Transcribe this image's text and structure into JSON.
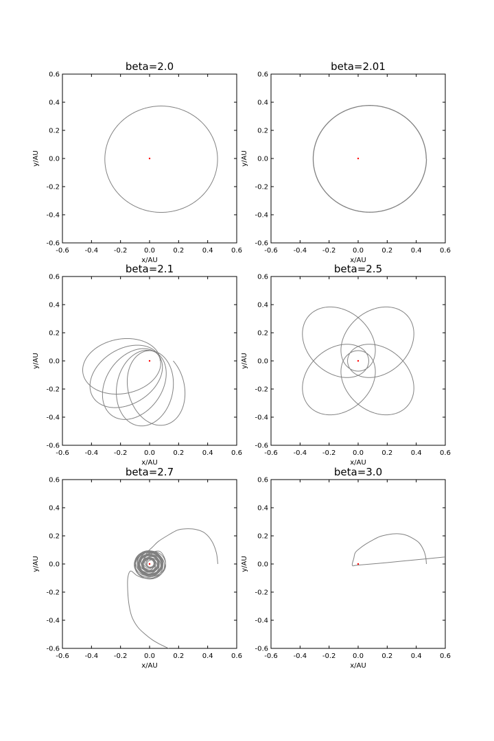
{
  "chart_data": [
    {
      "type": "line",
      "title": "beta=2.0",
      "xlabel": "x/AU",
      "ylabel": "y/AU",
      "xlim": [
        -0.6,
        0.6
      ],
      "ylim": [
        -0.6,
        0.6
      ],
      "xticks": [
        "-0.6",
        "-0.4",
        "-0.2",
        "0.0",
        "0.2",
        "0.4",
        "0.6"
      ],
      "yticks": [
        "-0.6",
        "-0.4",
        "-0.2",
        "0.0",
        "0.2",
        "0.4",
        "0.6"
      ],
      "grid": false,
      "line_color": "#808080",
      "sun_color": "#ff0000",
      "sun": [
        0.0,
        0.0
      ],
      "orbit": {
        "kind": "ellipse",
        "cx": 0.08,
        "cy": -0.005,
        "a": 0.388,
        "b": 0.378,
        "turns": 1
      }
    },
    {
      "type": "line",
      "title": "beta=2.01",
      "xlabel": "x/AU",
      "ylabel": "y/AU",
      "xlim": [
        -0.6,
        0.6
      ],
      "ylim": [
        -0.6,
        0.6
      ],
      "xticks": [
        "-0.6",
        "-0.4",
        "-0.2",
        "0.0",
        "0.2",
        "0.4",
        "0.6"
      ],
      "yticks": [
        "-0.6",
        "-0.4",
        "-0.2",
        "0.0",
        "0.2",
        "0.4",
        "0.6"
      ],
      "grid": false,
      "line_color": "#808080",
      "sun_color": "#ff0000",
      "sun": [
        0.0,
        0.0
      ],
      "orbit": {
        "kind": "ellipse",
        "cx": 0.08,
        "cy": -0.002,
        "a": 0.388,
        "b": 0.378,
        "turns": 2
      }
    },
    {
      "type": "line",
      "title": "beta=2.1",
      "xlabel": "x/AU",
      "ylabel": "y/AU",
      "xlim": [
        -0.6,
        0.6
      ],
      "ylim": [
        -0.6,
        0.6
      ],
      "xticks": [
        "-0.6",
        "-0.4",
        "-0.2",
        "0.0",
        "0.2",
        "0.4",
        "0.6"
      ],
      "yticks": [
        "-0.6",
        "-0.4",
        "-0.2",
        "0.0",
        "0.2",
        "0.4",
        "0.6"
      ],
      "grid": false,
      "line_color": "#808080",
      "sun_color": "#ff0000",
      "sun": [
        0.0,
        0.0
      ],
      "orbit": {
        "kind": "precess",
        "a": 0.27,
        "e": 0.73,
        "k": 0.94,
        "start_angle": 0,
        "turns": 5
      }
    },
    {
      "type": "line",
      "title": "beta=2.5",
      "xlabel": "x/AU",
      "ylabel": "y/AU",
      "xlim": [
        -0.6,
        0.6
      ],
      "ylim": [
        -0.6,
        0.6
      ],
      "xticks": [
        "-0.6",
        "-0.4",
        "-0.2",
        "0.0",
        "0.2",
        "0.4",
        "0.6"
      ],
      "yticks": [
        "-0.6",
        "-0.4",
        "-0.2",
        "0.0",
        "0.2",
        "0.4",
        "0.6"
      ],
      "grid": false,
      "line_color": "#808080",
      "sun_color": "#ff0000",
      "sun": [
        0.0,
        0.0
      ],
      "orbit": {
        "kind": "precess",
        "a": 0.27,
        "e": 0.73,
        "k": 0.8,
        "start_angle": 0,
        "turns": 8
      }
    },
    {
      "type": "line",
      "title": "beta=2.7",
      "xlabel": "x/AU",
      "ylabel": "y/AU",
      "xlim": [
        -0.6,
        0.6
      ],
      "ylim": [
        -0.6,
        0.6
      ],
      "xticks": [
        "-0.6",
        "-0.4",
        "-0.2",
        "0.0",
        "0.2",
        "0.4",
        "0.6"
      ],
      "yticks": [
        "-0.6",
        "-0.4",
        "-0.2",
        "0.0",
        "0.2",
        "0.4",
        "0.6"
      ],
      "grid": false,
      "line_color": "#808080",
      "sun_color": "#ff0000",
      "sun": [
        0.0,
        0.0
      ],
      "orbit": {
        "kind": "points",
        "x": [
          0.47,
          0.46,
          0.43,
          0.38,
          0.32,
          0.25,
          0.19,
          0.12,
          0.06,
          0.02,
          -0.01,
          -0.03,
          -0.02,
          0.02,
          0.07,
          0.1,
          0.11,
          0.09,
          0.05,
          0.0,
          -0.05,
          -0.08,
          -0.08,
          -0.05,
          0.0,
          0.05,
          0.08,
          0.07,
          0.03,
          -0.02,
          -0.06,
          -0.07,
          -0.05,
          0.0,
          0.06,
          0.1,
          0.11,
          0.08,
          0.02,
          -0.04,
          -0.09,
          -0.13,
          -0.15,
          -0.15,
          -0.14,
          -0.12,
          -0.08,
          -0.03,
          0.02,
          0.07,
          0.11,
          0.15
        ],
        "y": [
          0.0,
          0.08,
          0.16,
          0.22,
          0.245,
          0.25,
          0.24,
          0.2,
          0.16,
          0.12,
          0.09,
          0.05,
          0.02,
          0.08,
          0.09,
          0.05,
          0.0,
          -0.05,
          -0.08,
          -0.09,
          -0.07,
          -0.03,
          0.03,
          0.07,
          0.08,
          0.06,
          0.01,
          -0.04,
          -0.08,
          -0.08,
          -0.05,
          0.0,
          0.06,
          0.09,
          0.08,
          0.04,
          -0.02,
          -0.07,
          -0.1,
          -0.1,
          -0.08,
          -0.05,
          -0.1,
          -0.2,
          -0.3,
          -0.38,
          -0.45,
          -0.5,
          -0.54,
          -0.57,
          -0.59,
          -0.61
        ]
      },
      "inner_cluster": {
        "cx": 0.0,
        "cy": 0.0,
        "r_min": 0.03,
        "r_max": 0.1,
        "loops": 26
      }
    },
    {
      "type": "line",
      "title": "beta=3.0",
      "xlabel": "x/AU",
      "ylabel": "y/AU",
      "xlim": [
        -0.6,
        0.6
      ],
      "ylim": [
        -0.6,
        0.6
      ],
      "xticks": [
        "-0.6",
        "-0.4",
        "-0.2",
        "0.0",
        "0.2",
        "0.4",
        "0.6"
      ],
      "yticks": [
        "-0.6",
        "-0.4",
        "-0.2",
        "0.0",
        "0.2",
        "0.4",
        "0.6"
      ],
      "grid": false,
      "line_color": "#808080",
      "sun_color": "#ff0000",
      "sun": [
        0.0,
        0.0
      ],
      "orbit": {
        "kind": "points",
        "x": [
          0.47,
          0.465,
          0.45,
          0.42,
          0.38,
          0.33,
          0.27,
          0.21,
          0.15,
          0.1,
          0.05,
          0.01,
          -0.02,
          -0.03,
          -0.04,
          0.0,
          0.2,
          0.4,
          0.6
        ],
        "y": [
          0.0,
          0.05,
          0.1,
          0.15,
          0.18,
          0.205,
          0.215,
          0.21,
          0.195,
          0.17,
          0.14,
          0.11,
          0.08,
          0.04,
          -0.01,
          -0.008,
          0.01,
          0.03,
          0.05
        ]
      }
    }
  ]
}
